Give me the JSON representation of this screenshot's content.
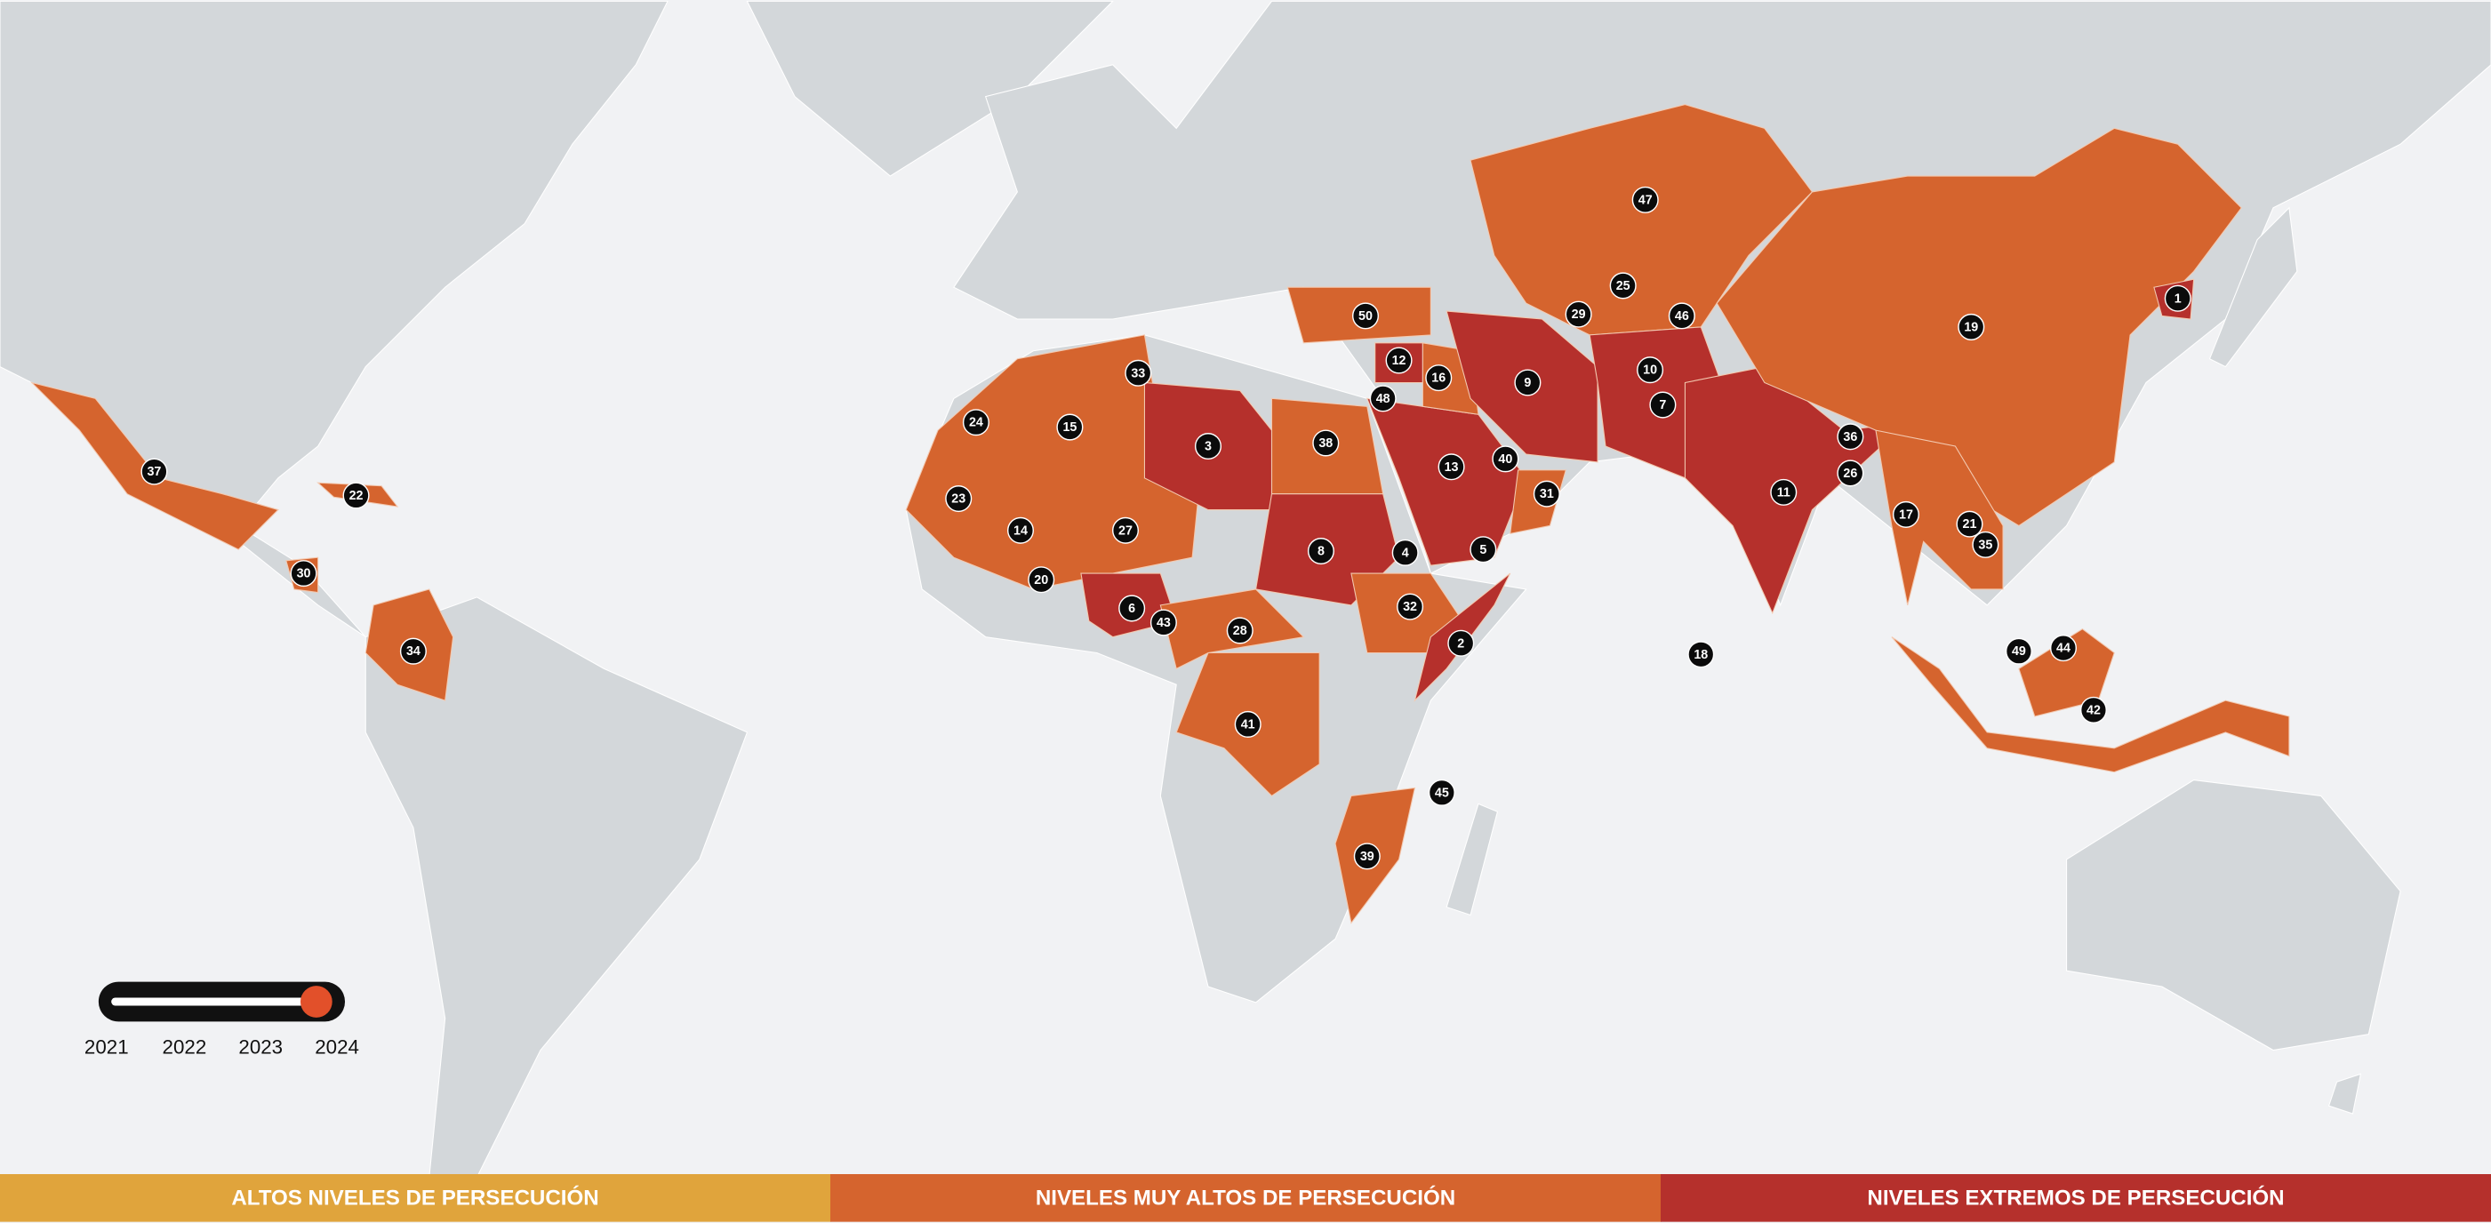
{
  "timeline": {
    "years": [
      "2021",
      "2022",
      "2023",
      "2024"
    ]
  },
  "legend": [
    {
      "label": "ALTOS NIVELES DE PERSECUCIÓN",
      "color": "#e0a43c"
    },
    {
      "label": "NIVELES MUY ALTOS DE PERSECUCIÓN",
      "color": "#d5642e"
    },
    {
      "label": "NIVELES EXTREMOS DE PERSECUCIÓN",
      "color": "#b5302c"
    }
  ],
  "markers": [
    1,
    2,
    3,
    4,
    5,
    6,
    7,
    8,
    9,
    10,
    11,
    12,
    13,
    14,
    15,
    16,
    17,
    18,
    19,
    20,
    21,
    22,
    23,
    24,
    25,
    26,
    27,
    28,
    29,
    30,
    31,
    32,
    33,
    34,
    35,
    36,
    37,
    38,
    39,
    40,
    41,
    42,
    43,
    44,
    45,
    46,
    47,
    48,
    49,
    50
  ]
}
